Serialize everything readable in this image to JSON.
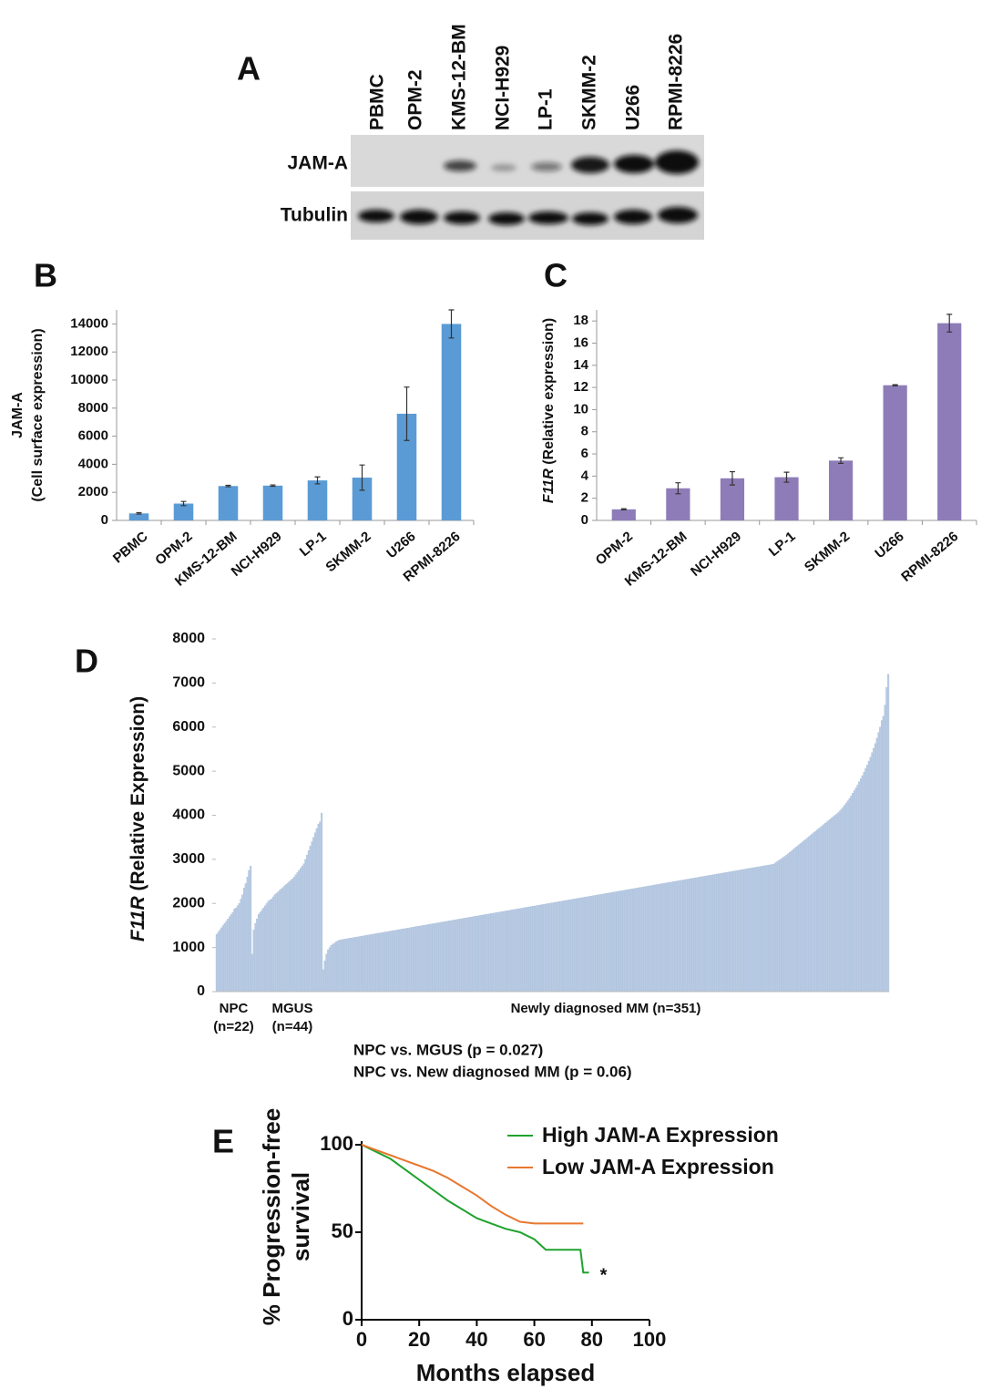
{
  "blot": {
    "panel": "A",
    "lanes": [
      "PBMC",
      "OPM-2",
      "KMS-12-BM",
      "NCI-H929",
      "LP-1",
      "SKMM-2",
      "U266",
      "RPMI-8226"
    ],
    "rows": [
      "JAM-A",
      "Tubulin"
    ]
  },
  "chart_data": [
    {
      "type": "bar",
      "panel": "B",
      "ylabel": [
        "JAM-A",
        "(Cell surface expression)"
      ],
      "categories": [
        "PBMC",
        "OPM-2",
        "KMS-12-BM",
        "NCI-H929",
        "LP-1",
        "SKMM-2",
        "U266",
        "RPMI-8226"
      ],
      "values": [
        500,
        1200,
        2450,
        2480,
        2850,
        3050,
        7600,
        14000
      ],
      "errors": [
        50,
        150,
        50,
        50,
        250,
        900,
        1900,
        1000
      ],
      "color": "#5b9bd5",
      "ylim": [
        0,
        15000
      ],
      "yticks": [
        0,
        2000,
        4000,
        6000,
        8000,
        10000,
        12000,
        14000
      ]
    },
    {
      "type": "bar",
      "panel": "C",
      "ylabel_gene": "F11R",
      "ylabel": " (Relative expression)",
      "categories": [
        "OPM-2",
        "KMS-12-BM",
        "NCI-H929",
        "LP-1",
        "SKMM-2",
        "U266",
        "RPMI-8226"
      ],
      "values": [
        1.0,
        2.9,
        3.8,
        3.9,
        5.4,
        12.2,
        17.8
      ],
      "errors": [
        0.05,
        0.5,
        0.6,
        0.45,
        0.25,
        0.05,
        0.8
      ],
      "color": "#8e7cb8",
      "ylim": [
        0,
        19
      ],
      "yticks": [
        0,
        2,
        4,
        6,
        8,
        10,
        12,
        14,
        16,
        18
      ]
    },
    {
      "type": "profile",
      "panel": "D",
      "ylabel_gene": "F11R",
      "ylabel": " (Relative Expression)",
      "color": "#b9cbe3",
      "ylim": [
        0,
        8000
      ],
      "yticks": [
        0,
        1000,
        2000,
        3000,
        4000,
        5000,
        6000,
        7000,
        8000
      ],
      "notes": [
        "NPC vs. MGUS (p = 0.027)",
        "NPC vs. New diagnosed MM (p = 0.06)"
      ],
      "groups": [
        {
          "label": "NPC",
          "sublabel": "(n=22)",
          "values": [
            1300,
            1350,
            1400,
            1450,
            1500,
            1550,
            1600,
            1650,
            1700,
            1750,
            1800,
            1880,
            1900,
            1950,
            2000,
            2100,
            2200,
            2350,
            2450,
            2600,
            2750,
            2850
          ]
        },
        {
          "label": "MGUS",
          "sublabel": "(n=44)",
          "values": [
            850,
            1400,
            1550,
            1650,
            1750,
            1800,
            1850,
            1900,
            1950,
            2000,
            2050,
            2080,
            2100,
            2150,
            2200,
            2230,
            2260,
            2300,
            2330,
            2360,
            2400,
            2430,
            2460,
            2500,
            2530,
            2560,
            2600,
            2650,
            2700,
            2750,
            2800,
            2850,
            2900,
            3000,
            3100,
            3200,
            3300,
            3400,
            3500,
            3600,
            3700,
            3800,
            3850,
            4050
          ]
        },
        {
          "label": "Newly diagnosed MM (n=351)",
          "values": [
            500,
            700,
            850,
            950,
            1000,
            1050,
            1080,
            1100,
            1130,
            1150,
            1170,
            1176,
            1183,
            1189,
            1196,
            1202,
            1208,
            1215,
            1221,
            1228,
            1234,
            1240,
            1247,
            1253,
            1260,
            1266,
            1272,
            1279,
            1285,
            1292,
            1298,
            1304,
            1311,
            1317,
            1324,
            1330,
            1336,
            1343,
            1349,
            1356,
            1362,
            1368,
            1375,
            1381,
            1388,
            1394,
            1400,
            1407,
            1413,
            1420,
            1426,
            1432,
            1439,
            1445,
            1452,
            1458,
            1464,
            1471,
            1477,
            1484,
            1490,
            1496,
            1503,
            1509,
            1516,
            1522,
            1528,
            1535,
            1541,
            1548,
            1554,
            1560,
            1567,
            1573,
            1580,
            1586,
            1592,
            1599,
            1605,
            1612,
            1618,
            1624,
            1631,
            1637,
            1644,
            1650,
            1656,
            1663,
            1669,
            1676,
            1682,
            1688,
            1695,
            1701,
            1708,
            1714,
            1720,
            1727,
            1733,
            1740,
            1746,
            1752,
            1759,
            1765,
            1772,
            1778,
            1784,
            1791,
            1797,
            1804,
            1810,
            1816,
            1823,
            1829,
            1836,
            1842,
            1848,
            1855,
            1861,
            1868,
            1874,
            1880,
            1887,
            1893,
            1900,
            1906,
            1912,
            1919,
            1925,
            1932,
            1938,
            1944,
            1951,
            1957,
            1964,
            1970,
            1976,
            1983,
            1989,
            1996,
            2002,
            2008,
            2015,
            2021,
            2028,
            2034,
            2040,
            2047,
            2053,
            2060,
            2066,
            2072,
            2079,
            2085,
            2092,
            2098,
            2104,
            2111,
            2117,
            2124,
            2130,
            2136,
            2143,
            2149,
            2156,
            2162,
            2168,
            2175,
            2181,
            2188,
            2194,
            2200,
            2207,
            2213,
            2220,
            2226,
            2232,
            2239,
            2245,
            2252,
            2258,
            2264,
            2271,
            2277,
            2284,
            2290,
            2296,
            2303,
            2309,
            2316,
            2322,
            2328,
            2335,
            2341,
            2348,
            2354,
            2360,
            2367,
            2373,
            2380,
            2386,
            2392,
            2399,
            2405,
            2412,
            2418,
            2424,
            2431,
            2437,
            2444,
            2450,
            2456,
            2463,
            2469,
            2476,
            2482,
            2488,
            2495,
            2501,
            2508,
            2514,
            2520,
            2527,
            2533,
            2540,
            2546,
            2552,
            2559,
            2565,
            2572,
            2578,
            2584,
            2591,
            2597,
            2604,
            2610,
            2616,
            2623,
            2629,
            2636,
            2642,
            2648,
            2655,
            2661,
            2668,
            2674,
            2680,
            2687,
            2693,
            2700,
            2706,
            2712,
            2719,
            2725,
            2732,
            2738,
            2744,
            2751,
            2757,
            2764,
            2770,
            2776,
            2783,
            2789,
            2796,
            2802,
            2808,
            2815,
            2821,
            2828,
            2834,
            2840,
            2847,
            2853,
            2860,
            2866,
            2872,
            2879,
            2885,
            2892,
            2920,
            2945,
            2970,
            2995,
            3020,
            3045,
            3070,
            3100,
            3130,
            3160,
            3190,
            3220,
            3250,
            3280,
            3310,
            3340,
            3370,
            3400,
            3430,
            3460,
            3490,
            3520,
            3550,
            3580,
            3610,
            3640,
            3670,
            3700,
            3730,
            3760,
            3790,
            3820,
            3850,
            3880,
            3910,
            3940,
            3970,
            4000,
            4030,
            4060,
            4100,
            4140,
            4180,
            4230,
            4280,
            4330,
            4380,
            4440,
            4500,
            4560,
            4620,
            4690,
            4760,
            4830,
            4900,
            4980,
            5060,
            5140,
            5230,
            5320,
            5420,
            5520,
            5630,
            5750,
            5880,
            6000,
            6150,
            6250,
            6500,
            6900,
            7200
          ]
        }
      ]
    },
    {
      "type": "line",
      "panel": "E",
      "ylabel": [
        "% Progression-free",
        "survival"
      ],
      "xlabel": "Months elapsed",
      "xlim": [
        0,
        100
      ],
      "xticks": [
        0,
        20,
        40,
        60,
        80,
        100
      ],
      "ylim": [
        0,
        100
      ],
      "yticks": [
        0,
        50,
        100
      ],
      "annotation": "*",
      "series": [
        {
          "name": "High JAM-A Expression",
          "color": "#1fa22e",
          "x": [
            0,
            5,
            10,
            15,
            20,
            25,
            30,
            35,
            40,
            45,
            50,
            55,
            60,
            64,
            70,
            76,
            77,
            79
          ],
          "values": [
            100,
            96,
            92,
            86,
            80,
            74,
            68,
            63,
            58,
            55,
            52,
            50,
            46,
            40,
            40,
            40,
            27,
            27
          ]
        },
        {
          "name": "Low JAM-A Expression",
          "color": "#e8772e",
          "x": [
            0,
            5,
            10,
            15,
            20,
            25,
            30,
            35,
            40,
            45,
            50,
            55,
            60,
            77
          ],
          "values": [
            100,
            97,
            94,
            91,
            88,
            85,
            81,
            76,
            71,
            65,
            60,
            56,
            55,
            55
          ]
        }
      ]
    }
  ]
}
